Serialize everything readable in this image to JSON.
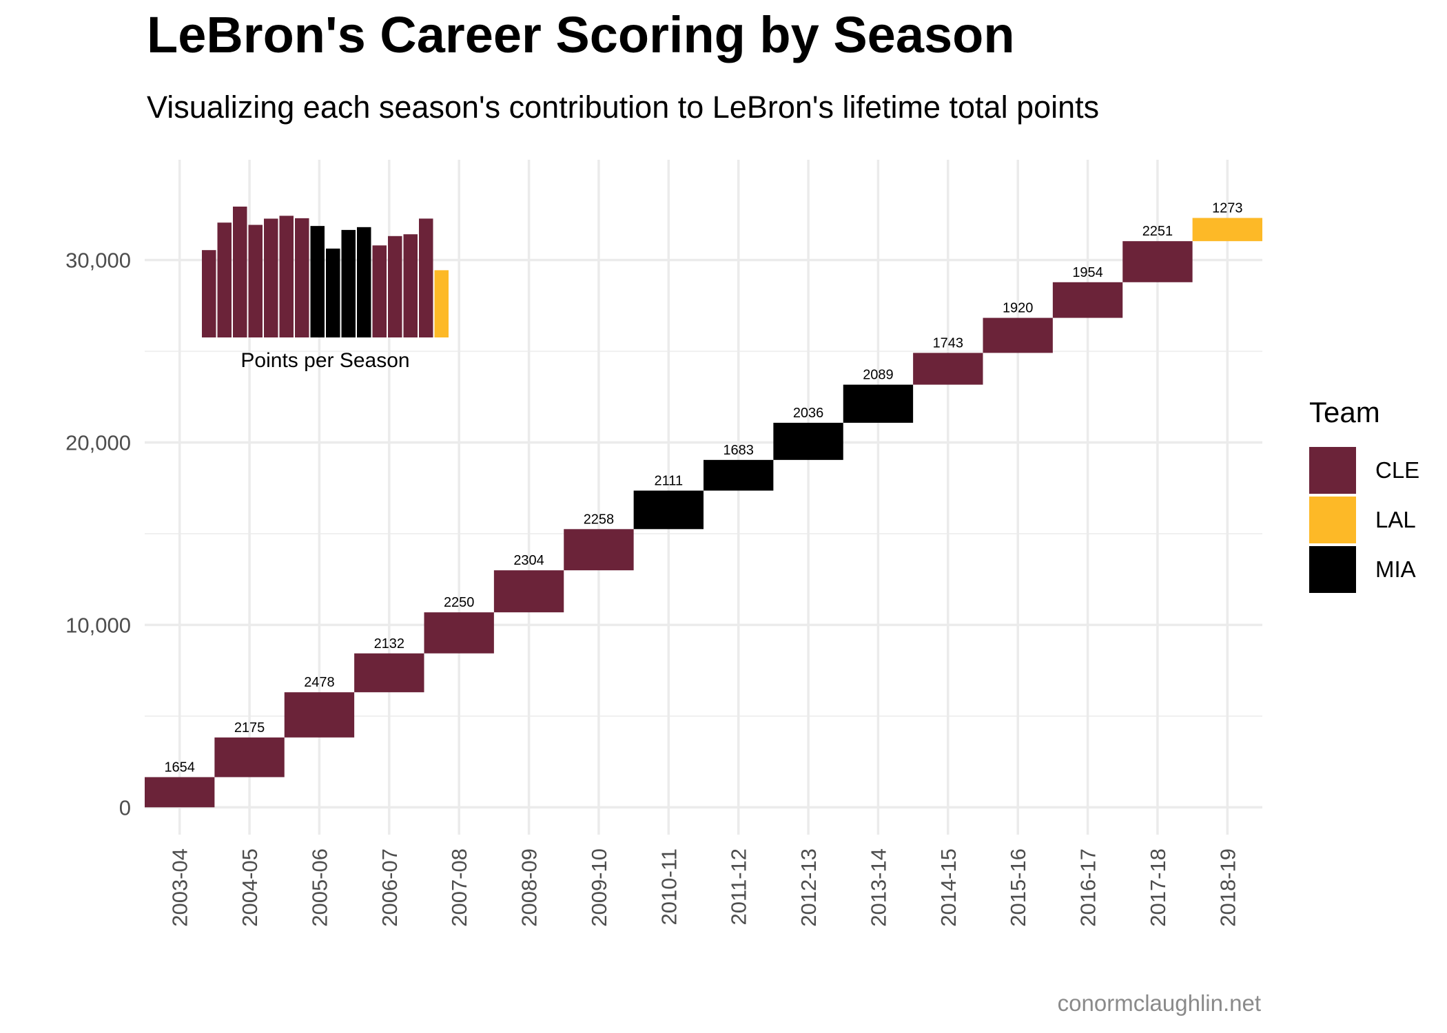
{
  "title": "LeBron's Career Scoring by Season",
  "subtitle": "Visualizing each season's contribution to LeBron's lifetime total points",
  "caption": "conormclaughlin.net",
  "legend": {
    "title": "Team",
    "items": [
      {
        "label": "CLE",
        "color": "#6b2339"
      },
      {
        "label": "LAL",
        "color": "#fdb927"
      },
      {
        "label": "MIA",
        "color": "#000000"
      }
    ]
  },
  "chart_data": [
    {
      "type": "waterfall",
      "categories": [
        "2003-04",
        "2004-05",
        "2005-06",
        "2006-07",
        "2007-08",
        "2008-09",
        "2009-10",
        "2010-11",
        "2011-12",
        "2012-13",
        "2013-14",
        "2014-15",
        "2015-16",
        "2016-17",
        "2017-18",
        "2018-19"
      ],
      "values": [
        1654,
        2175,
        2478,
        2132,
        2250,
        2304,
        2258,
        2111,
        1683,
        2036,
        2089,
        1743,
        1920,
        1954,
        2251,
        1273
      ],
      "teams": [
        "CLE",
        "CLE",
        "CLE",
        "CLE",
        "CLE",
        "CLE",
        "CLE",
        "MIA",
        "MIA",
        "MIA",
        "MIA",
        "CLE",
        "CLE",
        "CLE",
        "CLE",
        "LAL"
      ],
      "ylim": [
        -1500,
        35500
      ],
      "yticks": [
        0,
        10000,
        20000,
        30000
      ],
      "ytick_labels": [
        "0",
        "10,000",
        "20,000",
        "30,000"
      ],
      "grid": true
    },
    {
      "type": "bar",
      "xlabel": "Points per Season",
      "values": [
        1654,
        2175,
        2478,
        2132,
        2250,
        2304,
        2258,
        2111,
        1683,
        2036,
        2089,
        1743,
        1920,
        1954,
        2251,
        1273
      ],
      "teams": [
        "CLE",
        "CLE",
        "CLE",
        "CLE",
        "CLE",
        "CLE",
        "CLE",
        "MIA",
        "MIA",
        "MIA",
        "MIA",
        "CLE",
        "CLE",
        "CLE",
        "CLE",
        "LAL"
      ],
      "ylim": [
        0,
        2478
      ]
    }
  ]
}
